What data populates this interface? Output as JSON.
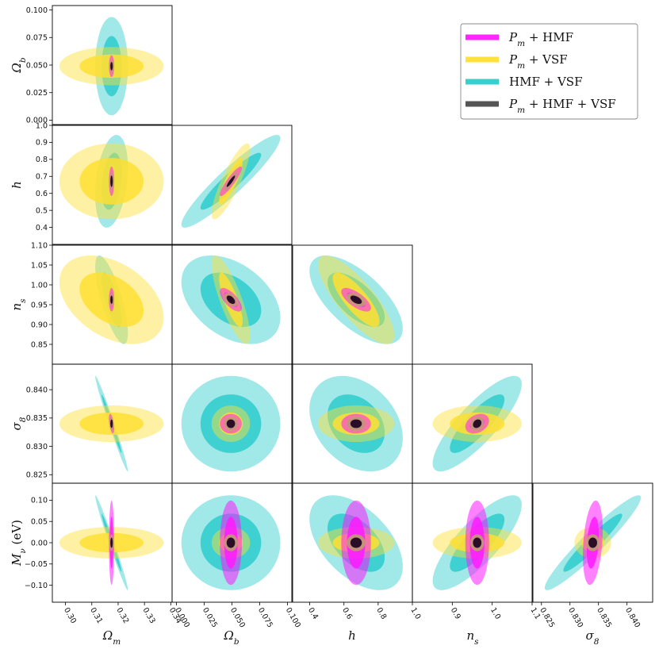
{
  "chart_data": {
    "type": "corner",
    "title": "",
    "parameters": [
      {
        "key": "Om",
        "label": "Ωm",
        "range": [
          0.295,
          0.3405
        ],
        "ticks": [
          0.3,
          0.31,
          0.32,
          0.33,
          0.34
        ],
        "tick_labels": [
          "0.30",
          "0.31",
          "0.32",
          "0.33",
          "0.34"
        ]
      },
      {
        "key": "Ob",
        "label": "Ωb",
        "range": [
          -0.004,
          0.104
        ],
        "ticks": [
          0.0,
          0.025,
          0.05,
          0.075,
          0.1
        ],
        "tick_labels": [
          "0.000",
          "0.025",
          "0.050",
          "0.075",
          "0.100"
        ]
      },
      {
        "key": "h",
        "label": "h",
        "range": [
          0.3,
          1.0
        ],
        "ticks": [
          0.4,
          0.6,
          0.8,
          1.0
        ],
        "tick_labels": [
          "0.4",
          "0.6",
          "0.8",
          "1.0"
        ],
        "y_ticks": [
          0.4,
          0.5,
          0.6,
          0.7,
          0.8,
          0.9,
          1.0
        ],
        "y_tick_labels": [
          "0.4",
          "0.5",
          "0.6",
          "0.7",
          "0.8",
          "0.9",
          "1.0"
        ]
      },
      {
        "key": "ns",
        "label": "ns",
        "range": [
          0.8,
          1.1
        ],
        "ticks": [
          0.9,
          1.0,
          1.1
        ],
        "tick_labels": [
          "0.9",
          "1.0",
          "1.1"
        ],
        "y_ticks": [
          0.85,
          0.9,
          0.95,
          1.0,
          1.05,
          1.1
        ],
        "y_tick_labels": [
          "0.85",
          "0.90",
          "0.95",
          "1.00",
          "1.05",
          "1.10"
        ]
      },
      {
        "key": "s8",
        "label": "σ8",
        "range": [
          0.8235,
          0.8445
        ],
        "ticks": [
          0.825,
          0.83,
          0.835,
          0.84
        ],
        "tick_labels": [
          "0.825",
          "0.830",
          "0.835",
          "0.840"
        ]
      },
      {
        "key": "Mnu",
        "label": "Mν (eV)",
        "range": [
          -0.14,
          0.14
        ],
        "y_ticks": [
          -0.1,
          -0.05,
          0.0,
          0.05,
          0.1
        ],
        "y_tick_labels": [
          "−0.10",
          "−0.05",
          "0.00",
          "0.05",
          "0.10"
        ]
      }
    ],
    "fiducial": {
      "Om": 0.3175,
      "Ob": 0.049,
      "h": 0.6711,
      "ns": 0.9624,
      "s8": 0.834,
      "Mnu": 0.0
    },
    "series": [
      {
        "name": "Pm + HMF",
        "legend_label": "Pm + HMF",
        "color": "#ff1aff",
        "sigma": {
          "Om": 0.0004,
          "Ob": 0.004,
          "h": 0.035,
          "ns": 0.012,
          "s8": 0.0007,
          "Mnu": 0.04
        },
        "corr": {
          "Ob|Om": 0.0,
          "h|Om": 0.0,
          "h|Ob": 0.9,
          "ns|Om": 0.0,
          "ns|Ob": -0.7,
          "ns|h": -0.7,
          "s8|Om": -0.5,
          "s8|Ob": 0.0,
          "s8|h": 0.0,
          "s8|ns": 0.3,
          "Mnu|Om": 0.0,
          "Mnu|Ob": 0.0,
          "Mnu|h": 0.0,
          "Mnu|ns": 0.0,
          "Mnu|s8": 0.3
        }
      },
      {
        "name": "Pm + VSF",
        "legend_label": "Pm + VSF",
        "color": "#ffdf33",
        "sigma": {
          "Om": 0.008,
          "Ob": 0.007,
          "h": 0.09,
          "ns": 0.045,
          "s8": 0.0013,
          "Mnu": 0.015
        },
        "corr": {
          "Ob|Om": 0.0,
          "h|Om": 0.0,
          "h|Ob": 0.85,
          "ns|Om": -0.4,
          "ns|Ob": -0.8,
          "ns|h": -0.8,
          "s8|Om": 0.0,
          "s8|Ob": 0.0,
          "s8|h": 0.0,
          "s8|ns": 0.0,
          "Mnu|Om": 0.0,
          "Mnu|Ob": 0.0,
          "Mnu|h": 0.0,
          "Mnu|ns": 0.0,
          "Mnu|s8": 0.0
        }
      },
      {
        "name": "HMF + VSF",
        "legend_label": "HMF + VSF",
        "color": "#2ecccc",
        "sigma": {
          "Om": 0.0025,
          "Ob": 0.018,
          "h": 0.11,
          "ns": 0.045,
          "s8": 0.0034,
          "Mnu": 0.045
        },
        "corr": {
          "Ob|Om": 0.0,
          "h|Om": 0.3,
          "h|Ob": 0.93,
          "ns|Om": -0.75,
          "ns|Ob": -0.4,
          "ns|h": -0.65,
          "s8|Om": -0.985,
          "s8|Ob": 0.0,
          "s8|h": -0.3,
          "s8|ns": 0.83,
          "Mnu|Om": -0.985,
          "Mnu|Ob": 0.0,
          "Mnu|h": -0.5,
          "Mnu|ns": 0.8,
          "Mnu|s8": 0.95
        }
      },
      {
        "name": "Pm + HMF + VSF",
        "legend_label": "Pm + HMF + VSF",
        "color": "#555555",
        "sigma": {
          "Om": 0.0003,
          "Ob": 0.0025,
          "h": 0.022,
          "ns": 0.007,
          "s8": 0.0005,
          "Mnu": 0.008
        },
        "corr": {
          "Ob|Om": 0.0,
          "h|Om": 0.0,
          "h|Ob": 0.9,
          "ns|Om": 0.0,
          "ns|Ob": -0.5,
          "ns|h": -0.5,
          "s8|Om": 0.0,
          "s8|Ob": 0.0,
          "s8|h": 0.0,
          "s8|ns": 0.2,
          "Mnu|Om": 0.0,
          "Mnu|Ob": 0.0,
          "Mnu|h": 0.0,
          "Mnu|ns": 0.0,
          "Mnu|s8": 0.0
        }
      }
    ],
    "contour_levels": [
      "1σ",
      "2σ"
    ],
    "legend_placement": "top-right",
    "grid": false
  }
}
